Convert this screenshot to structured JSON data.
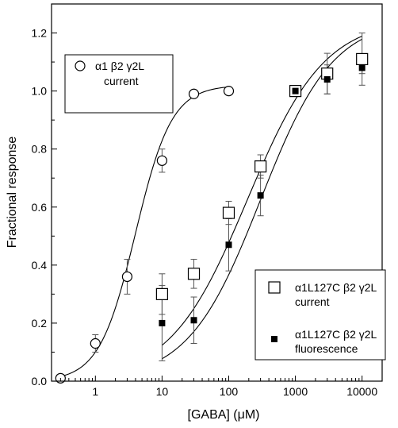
{
  "chart_data": {
    "type": "scatter",
    "title": "",
    "xlabel": "[GABA] (μM)",
    "ylabel": "Fractional response",
    "xscale": "log",
    "xlim": [
      0.22,
      20000
    ],
    "ylim": [
      0,
      1.3
    ],
    "x_ticks": [
      1,
      10,
      100,
      1000,
      10000
    ],
    "x_tick_labels": [
      "1",
      "10",
      "100",
      "1000",
      "10000"
    ],
    "y_ticks": [
      0.0,
      0.2,
      0.4,
      0.6,
      0.8,
      1.0,
      1.2
    ],
    "y_tick_labels": [
      "0.0",
      "0.2",
      "0.4",
      "0.6",
      "0.8",
      "1.0",
      "1.2"
    ],
    "grid": false,
    "series": [
      {
        "name": "α1 β2 γ2L current",
        "marker": "open-circle",
        "x": [
          0.3,
          1,
          3,
          10,
          30,
          100
        ],
        "y": [
          0.01,
          0.13,
          0.36,
          0.76,
          0.99,
          1.0
        ],
        "err": [
          0,
          0.03,
          0.06,
          0.04,
          0.01,
          0
        ],
        "fit": {
          "ec50": 4.0,
          "hill": 1.6,
          "top": 1.02,
          "bottom": 0,
          "x_range": [
            0.3,
            100
          ]
        }
      },
      {
        "name": "α1L127C β2 γ2L current",
        "marker": "open-square",
        "x": [
          10,
          30,
          100,
          300,
          1000,
          3000,
          10000
        ],
        "y": [
          0.3,
          0.37,
          0.58,
          0.74,
          1.0,
          1.06,
          1.11
        ],
        "err": [
          0.07,
          0.05,
          0.04,
          0.04,
          0,
          0.07,
          0.09
        ],
        "fit": {
          "ec50": 190,
          "hill": 0.75,
          "top": 1.25,
          "bottom": 0,
          "x_range": [
            10,
            10000
          ]
        }
      },
      {
        "name": "α1L127C β2 γ2L fluorescence",
        "marker": "filled-square",
        "x": [
          10,
          30,
          100,
          300,
          1000,
          3000,
          10000
        ],
        "y": [
          0.2,
          0.21,
          0.47,
          0.64,
          1.0,
          1.04,
          1.08
        ],
        "err": [
          0.13,
          0.08,
          0.09,
          0.07,
          0,
          0.05,
          0.02
        ],
        "fit": {
          "ec50": 300,
          "hill": 0.8,
          "top": 1.25,
          "bottom": 0,
          "x_range": [
            10,
            10000
          ]
        }
      }
    ],
    "legends": [
      {
        "placement": "top-left",
        "entries": [
          {
            "series": 0,
            "lines": [
              "α1 β2 γ2L",
              "current"
            ]
          }
        ]
      },
      {
        "placement": "bottom-right",
        "entries": [
          {
            "series": 1,
            "lines": [
              "α1L127C β2 γ2L",
              "current"
            ]
          },
          {
            "series": 2,
            "lines": [
              "α1L127C β2 γ2L",
              "fluorescence"
            ]
          }
        ]
      }
    ]
  }
}
